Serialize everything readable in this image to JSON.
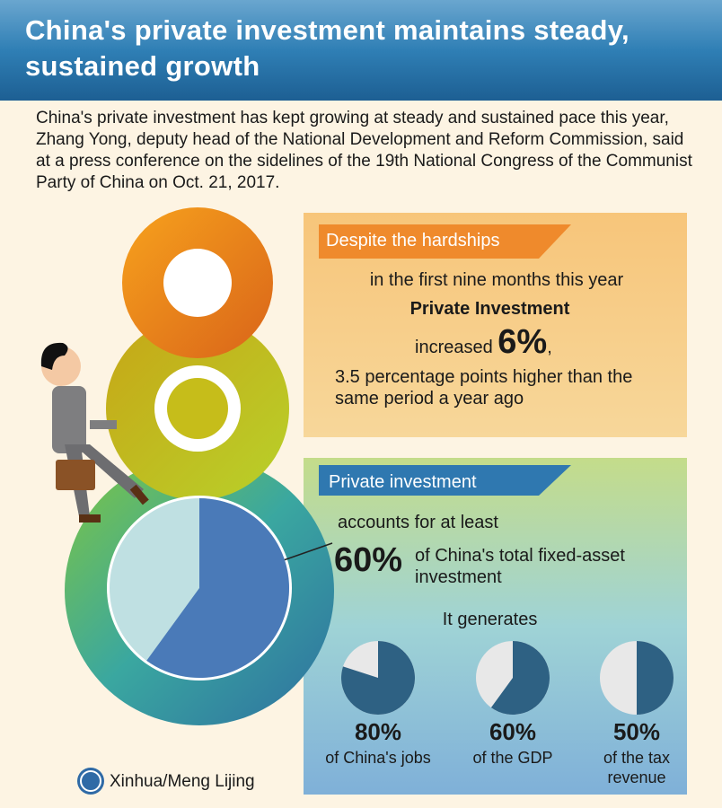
{
  "header": {
    "title": "China's private investment maintains steady, sustained growth"
  },
  "intro": "China's private investment has kept growing at steady and sustained pace this year, Zhang Yong, deputy head of the National Development and Reform Commission, said at a press conference on the sidelines of the 19th National Congress of the Communist Party of China on Oct. 21, 2017.",
  "growth_box": {
    "heading": "Despite the hardships",
    "period": "in the first nine months this year",
    "subject": "Private Investment",
    "verb": "increased",
    "figure": "6%",
    "comma": ",",
    "comparison": "3.5 percentage points higher than the same period a year ago"
  },
  "share_box": {
    "heading": "Private investment",
    "lead": "accounts for at least",
    "share": {
      "value": 60,
      "label": "60%"
    },
    "share_text": "of China's total fixed-asset investment",
    "generates": {
      "title": "It generates",
      "values": [
        80,
        60,
        50
      ],
      "value_labels": [
        "80%",
        "60%",
        "50%"
      ],
      "captions": [
        "of China's jobs",
        "of the GDP",
        "of the tax revenue"
      ]
    }
  },
  "footer": {
    "credit": "Xinhua/Meng Lijing"
  }
}
